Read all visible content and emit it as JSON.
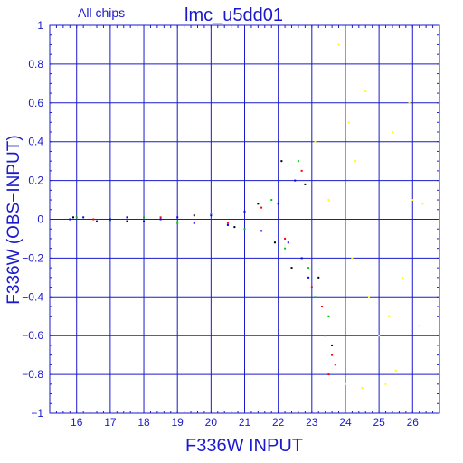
{
  "chart_data": {
    "type": "scatter",
    "panel_label": "All chips",
    "title": "lmc_u5dd01",
    "xlabel": "F336W INPUT",
    "ylabel": "F336W (OBS−INPUT)",
    "xlim": [
      15.2,
      26.8
    ],
    "ylim": [
      -1.0,
      1.0
    ],
    "x_ticks": [
      16,
      17,
      18,
      19,
      20,
      21,
      22,
      23,
      24,
      25,
      26
    ],
    "x_tick_labels": [
      "16",
      "17",
      "18",
      "19",
      "20",
      "21",
      "22",
      "23",
      "24",
      "25",
      "26"
    ],
    "y_ticks": [
      -1,
      -0.8,
      -0.6,
      -0.4,
      -0.2,
      0,
      0.2,
      0.4,
      0.6,
      0.8,
      1
    ],
    "y_tick_labels": [
      "−1",
      "−0.8",
      "−0.6",
      "−0.4",
      "−0.2",
      "0",
      "0.2",
      "0.4",
      "0.6",
      "0.8",
      "1"
    ],
    "grid": true,
    "colors": {
      "axis": "#1a1acc",
      "grid": "#1a1acc",
      "text": "#1a1acc"
    },
    "series": [
      {
        "color": "#0000ff",
        "points": [
          [
            15.8,
            0.0
          ],
          [
            16.2,
            0.01
          ],
          [
            16.6,
            -0.01
          ],
          [
            17.0,
            0.0
          ],
          [
            17.5,
            0.01
          ],
          [
            18.0,
            -0.01
          ],
          [
            18.5,
            0.0
          ],
          [
            19.0,
            0.01
          ],
          [
            19.5,
            -0.02
          ],
          [
            20.0,
            0.02
          ],
          [
            20.5,
            -0.03
          ],
          [
            21.0,
            0.04
          ],
          [
            21.5,
            -0.06
          ],
          [
            22.0,
            0.08
          ],
          [
            22.3,
            -0.12
          ],
          [
            22.5,
            0.2
          ],
          [
            22.7,
            -0.2
          ],
          [
            22.9,
            -0.3
          ]
        ]
      },
      {
        "color": "#00cc00",
        "points": [
          [
            16.0,
            0.01
          ],
          [
            17.0,
            -0.01
          ],
          [
            18.0,
            0.01
          ],
          [
            19.0,
            -0.02
          ],
          [
            20.0,
            0.03
          ],
          [
            21.0,
            -0.05
          ],
          [
            21.8,
            0.1
          ],
          [
            22.2,
            -0.15
          ],
          [
            22.6,
            0.3
          ],
          [
            22.9,
            -0.25
          ],
          [
            23.1,
            -0.4
          ],
          [
            23.4,
            -0.6
          ],
          [
            23.5,
            -0.5
          ]
        ]
      },
      {
        "color": "#ff0000",
        "points": [
          [
            16.5,
            0.0
          ],
          [
            18.5,
            0.01
          ],
          [
            20.5,
            -0.02
          ],
          [
            21.5,
            0.06
          ],
          [
            22.2,
            -0.1
          ],
          [
            22.7,
            0.25
          ],
          [
            23.0,
            -0.35
          ],
          [
            23.3,
            -0.45
          ],
          [
            23.6,
            -0.7
          ],
          [
            23.7,
            -0.75
          ],
          [
            23.5,
            -0.8
          ]
        ]
      },
      {
        "color": "#000000",
        "points": [
          [
            15.9,
            0.01
          ],
          [
            17.5,
            -0.01
          ],
          [
            19.5,
            0.02
          ],
          [
            20.7,
            -0.04
          ],
          [
            21.4,
            0.08
          ],
          [
            21.9,
            -0.12
          ],
          [
            22.1,
            0.3
          ],
          [
            22.4,
            -0.25
          ],
          [
            22.8,
            0.18
          ],
          [
            23.2,
            -0.3
          ],
          [
            23.6,
            -0.65
          ]
        ]
      },
      {
        "color": "#ffff00",
        "points": [
          [
            23.1,
            0.4
          ],
          [
            23.5,
            0.1
          ],
          [
            23.8,
            0.9
          ],
          [
            24.1,
            0.5
          ],
          [
            24.3,
            0.3
          ],
          [
            24.6,
            0.66
          ],
          [
            24.2,
            -0.2
          ],
          [
            24.7,
            -0.4
          ],
          [
            25.0,
            -0.6
          ],
          [
            25.2,
            -0.85
          ],
          [
            25.4,
            0.45
          ],
          [
            25.5,
            -0.78
          ],
          [
            25.7,
            -0.3
          ],
          [
            25.9,
            0.6
          ],
          [
            26.0,
            0.1
          ],
          [
            26.2,
            -0.55
          ],
          [
            24.0,
            -0.85
          ],
          [
            24.5,
            -0.87
          ],
          [
            25.3,
            -0.5
          ],
          [
            26.3,
            0.08
          ]
        ]
      }
    ]
  }
}
